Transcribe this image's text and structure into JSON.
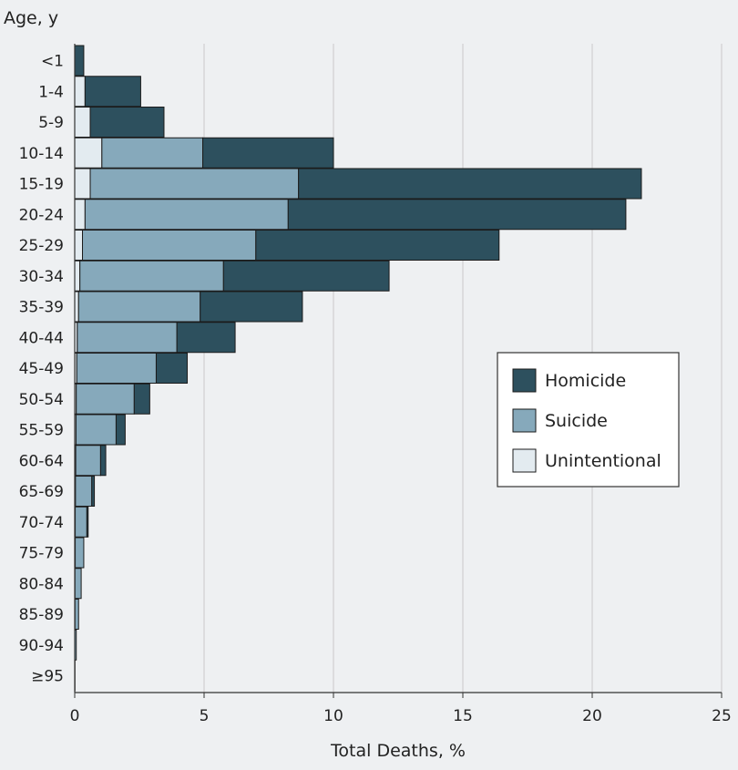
{
  "chart_data": {
    "type": "bar",
    "orientation": "horizontal",
    "stacked": true,
    "title": "",
    "ylabel": "Age, y",
    "xlabel": "Total Deaths, %",
    "xlim": [
      0,
      25
    ],
    "xticks": [
      0,
      5,
      10,
      15,
      20,
      25
    ],
    "grid": true,
    "legend_position": "right",
    "categories": [
      "<1",
      "1-4",
      "5-9",
      "10-14",
      "15-19",
      "20-24",
      "25-29",
      "30-34",
      "35-39",
      "40-44",
      "45-49",
      "50-54",
      "55-59",
      "60-64",
      "65-69",
      "70-74",
      "75-79",
      "80-84",
      "85-89",
      "90-94",
      "≥95"
    ],
    "series": [
      {
        "name": "Unintentional",
        "color": "#e3ebf0",
        "values": [
          0.0,
          0.4,
          0.6,
          1.05,
          0.6,
          0.4,
          0.3,
          0.2,
          0.15,
          0.1,
          0.08,
          0.06,
          0.05,
          0.04,
          0.03,
          0.02,
          0.02,
          0.01,
          0.01,
          0.0,
          0.0
        ]
      },
      {
        "name": "Suicide",
        "color": "#86a9bb",
        "values": [
          0.0,
          0.0,
          0.0,
          3.9,
          8.05,
          7.85,
          6.7,
          5.55,
          4.7,
          3.85,
          3.07,
          2.24,
          1.55,
          0.96,
          0.63,
          0.45,
          0.33,
          0.24,
          0.14,
          0.06,
          0.01
        ]
      },
      {
        "name": "Homicide",
        "color": "#2d505e",
        "values": [
          0.35,
          2.15,
          2.85,
          5.05,
          13.25,
          13.05,
          9.4,
          6.4,
          3.95,
          2.25,
          1.2,
          0.6,
          0.35,
          0.2,
          0.1,
          0.05,
          0.0,
          0.0,
          0.0,
          0.0,
          0.0
        ]
      }
    ],
    "legend_order": [
      "Homicide",
      "Suicide",
      "Unintentional"
    ]
  }
}
